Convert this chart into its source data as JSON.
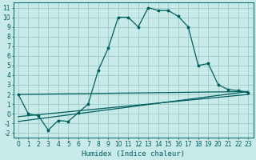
{
  "title": "",
  "xlabel": "Humidex (Indice chaleur)",
  "ylabel": "",
  "bg_color": "#c8eae8",
  "grid_color": "#a0d0cc",
  "line_color": "#006060",
  "xlim": [
    -0.5,
    23.5
  ],
  "ylim": [
    -2.5,
    11.5
  ],
  "xticks": [
    0,
    1,
    2,
    3,
    4,
    5,
    6,
    7,
    8,
    9,
    10,
    11,
    12,
    13,
    14,
    15,
    16,
    17,
    18,
    19,
    20,
    21,
    22,
    23
  ],
  "yticks": [
    -2,
    -1,
    0,
    1,
    2,
    3,
    4,
    5,
    6,
    7,
    8,
    9,
    10,
    11
  ],
  "curve1_x": [
    0,
    1,
    2,
    3,
    4,
    5,
    6,
    7,
    8,
    9,
    10,
    11,
    12,
    13,
    14,
    15,
    16,
    17,
    18,
    19,
    20,
    21,
    22,
    23
  ],
  "curve1_y": [
    2.0,
    0.0,
    -0.2,
    -1.7,
    -0.7,
    -0.8,
    0.1,
    1.0,
    4.5,
    6.8,
    10.0,
    10.0,
    9.0,
    11.0,
    10.7,
    10.7,
    10.1,
    9.0,
    5.0,
    5.2,
    3.0,
    2.5,
    2.4,
    2.2
  ],
  "line1_x": [
    0,
    23
  ],
  "line1_y": [
    2.0,
    2.3
  ],
  "line2_x": [
    0,
    23
  ],
  "line2_y": [
    -0.3,
    2.0
  ],
  "line3_x": [
    0,
    23
  ],
  "line3_y": [
    -0.8,
    2.3
  ]
}
